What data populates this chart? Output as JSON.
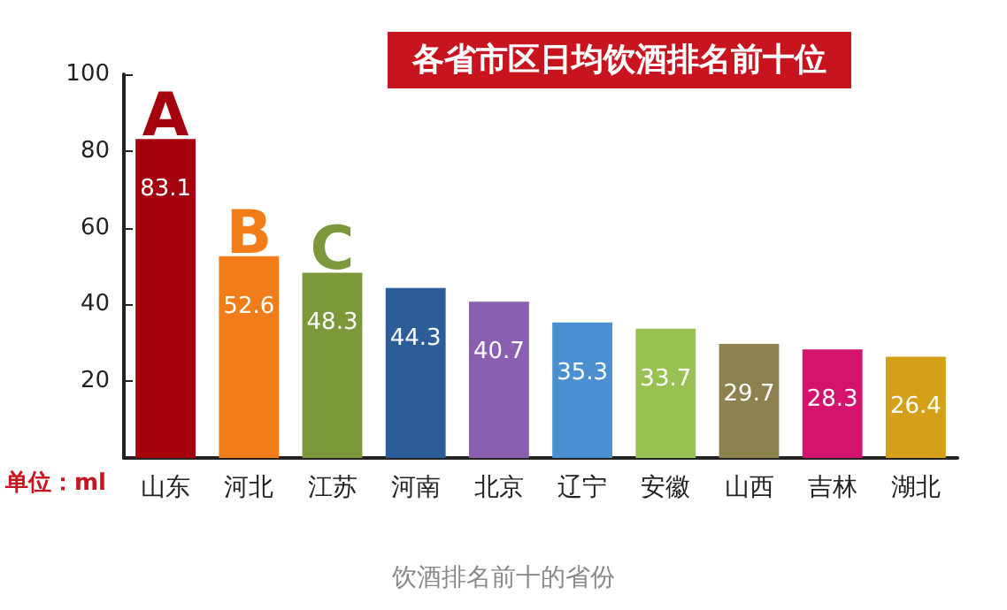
{
  "chart_data": {
    "type": "bar",
    "title": "各省市区日均饮酒排名前十位",
    "ylabel": "单位：ml",
    "categories": [
      "山东",
      "河北",
      "江苏",
      "河南",
      "北京",
      "辽宁",
      "安徽",
      "山西",
      "吉林",
      "湖北"
    ],
    "values": [
      83.1,
      52.6,
      48.3,
      44.3,
      40.7,
      35.3,
      33.7,
      29.7,
      28.3,
      26.4
    ],
    "colors": [
      "#a5000d",
      "#f07d1a",
      "#7b983a",
      "#2c5d98",
      "#8a5fb0",
      "#4a8fd0",
      "#98c152",
      "#8e8150",
      "#d5126e",
      "#d4a018"
    ],
    "data_labels": true,
    "ylim": [
      0,
      100
    ],
    "yticks": [
      20,
      40,
      60,
      80,
      100
    ],
    "annotations": [
      {
        "text": "A",
        "x": "山东",
        "y": 83.1
      },
      {
        "text": "B",
        "x": "河北",
        "y": 52.6
      },
      {
        "text": "C",
        "x": "江苏",
        "y": 48.3
      },
      "饮酒排名前十的省份"
    ]
  }
}
